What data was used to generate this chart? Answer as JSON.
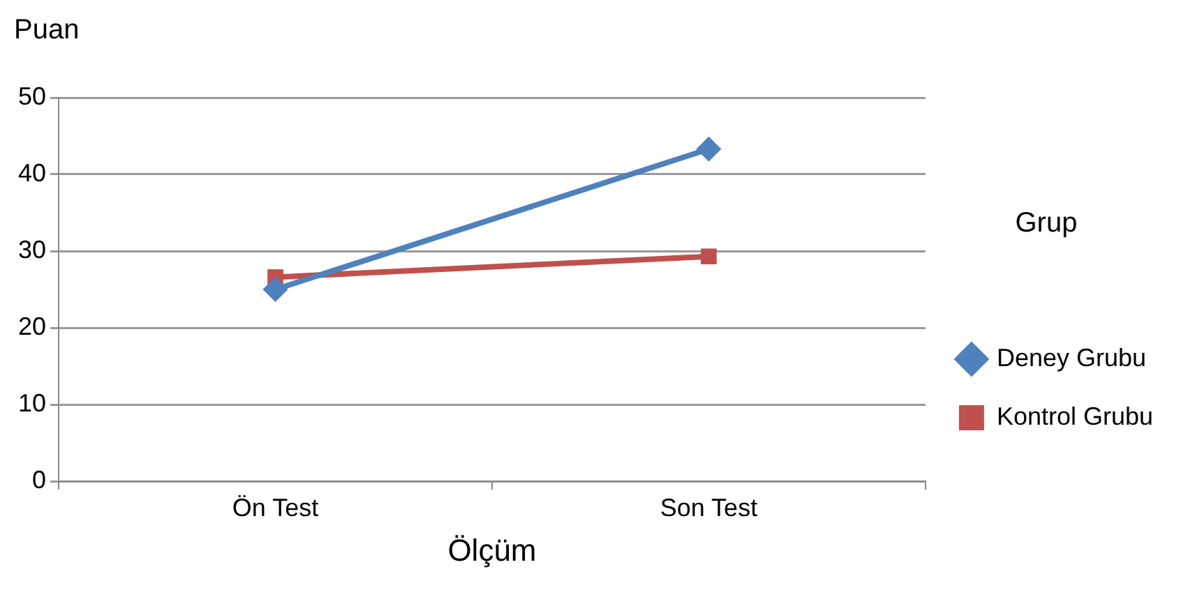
{
  "chart_data": {
    "type": "line",
    "xlabel": "Ölçüm",
    "ylabel": "Puan",
    "legend_title": "Grup",
    "categories": [
      "Ön Test",
      "Son Test"
    ],
    "series": [
      {
        "name": "Deney Grubu",
        "color": "#4f81bd",
        "values": [
          25,
          43.3
        ],
        "marker": "diamond"
      },
      {
        "name": "Kontrol Grubu",
        "color": "#c0504d",
        "values": [
          26.6,
          29.3
        ],
        "marker": "square"
      }
    ],
    "ylim": [
      0,
      50
    ],
    "yticks": [
      0,
      10,
      20,
      30,
      40,
      50
    ],
    "grid": "y",
    "legend": "right",
    "line_style": "solid"
  }
}
